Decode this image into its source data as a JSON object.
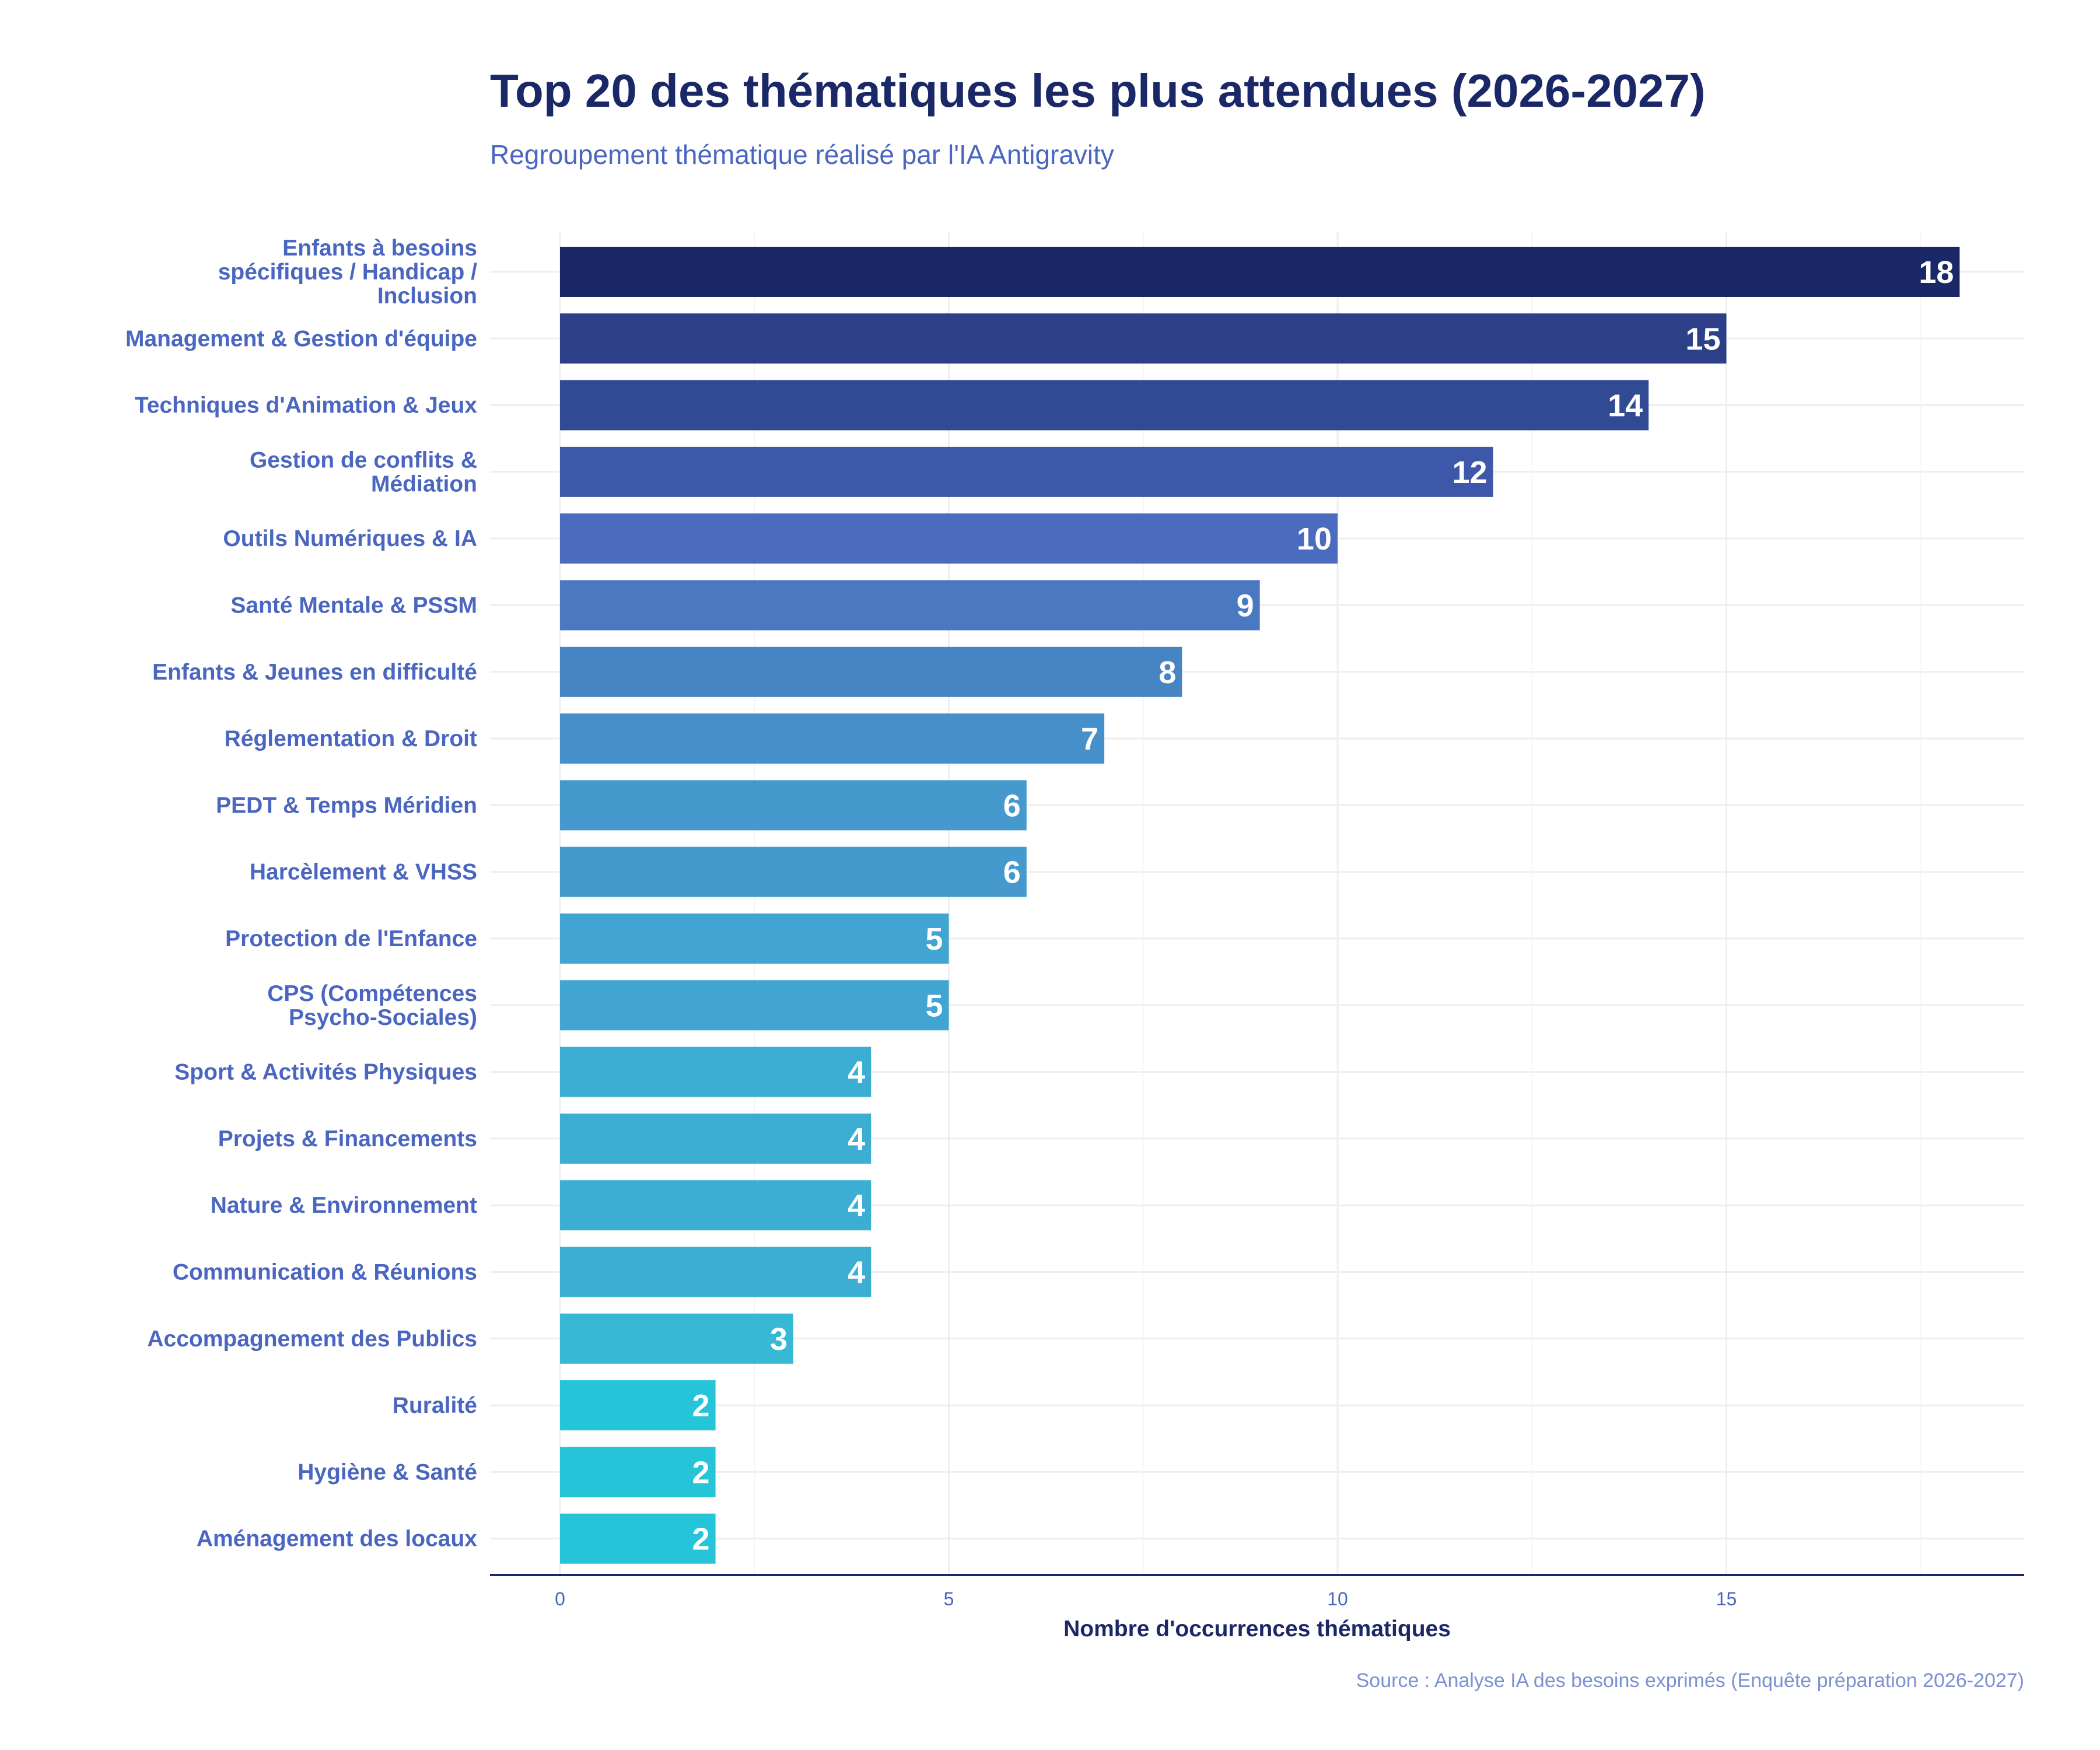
{
  "chart_data": {
    "type": "bar",
    "orientation": "horizontal",
    "title": "Top 20 des thématiques les plus attendues (2026-2027)",
    "subtitle": "Regroupement thématique réalisé par l'IA Antigravity",
    "xlabel": "Nombre d'occurrences thématiques",
    "ylabel": "",
    "source": "Source : Analyse IA des besoins exprimés (Enquête préparation 2026-2027)",
    "xlim": [
      0,
      19
    ],
    "xticks": [
      0,
      5,
      10,
      15
    ],
    "grid": true,
    "categories": [
      [
        "Enfants à besoins",
        "spécifiques / Handicap /",
        "Inclusion"
      ],
      [
        "Management & Gestion d'équipe"
      ],
      [
        "Techniques d'Animation & Jeux"
      ],
      [
        "Gestion de conflits &",
        "Médiation"
      ],
      [
        "Outils Numériques & IA"
      ],
      [
        "Santé Mentale & PSSM"
      ],
      [
        "Enfants & Jeunes en difficulté"
      ],
      [
        "Réglementation & Droit"
      ],
      [
        "PEDT & Temps Méridien"
      ],
      [
        "Harcèlement & VHSS"
      ],
      [
        "Protection de l'Enfance"
      ],
      [
        "CPS (Compétences",
        "Psycho-Sociales)"
      ],
      [
        "Sport & Activités Physiques"
      ],
      [
        "Projets & Financements"
      ],
      [
        "Nature & Environnement"
      ],
      [
        "Communication & Réunions"
      ],
      [
        "Accompagnement des Publics"
      ],
      [
        "Ruralité"
      ],
      [
        "Hygiène & Santé"
      ],
      [
        "Aménagement des locaux"
      ]
    ],
    "values": [
      18,
      15,
      14,
      12,
      10,
      9,
      8,
      7,
      6,
      6,
      5,
      5,
      4,
      4,
      4,
      4,
      3,
      2,
      2,
      2
    ],
    "colors": [
      "#1b2868",
      "#2c3f88",
      "#314a94",
      "#3d58a8",
      "#4a6bbe",
      "#4a79c1",
      "#4784c4",
      "#458fca",
      "#4699cd",
      "#4699cd",
      "#42a4d2",
      "#42a4d2",
      "#3caed4",
      "#3caed4",
      "#3caed4",
      "#3caed4",
      "#37b9d6",
      "#25c4d8",
      "#25c4d8",
      "#25c4d8"
    ],
    "label_color": "#4a66c0",
    "axis_color": "#1b2868"
  }
}
